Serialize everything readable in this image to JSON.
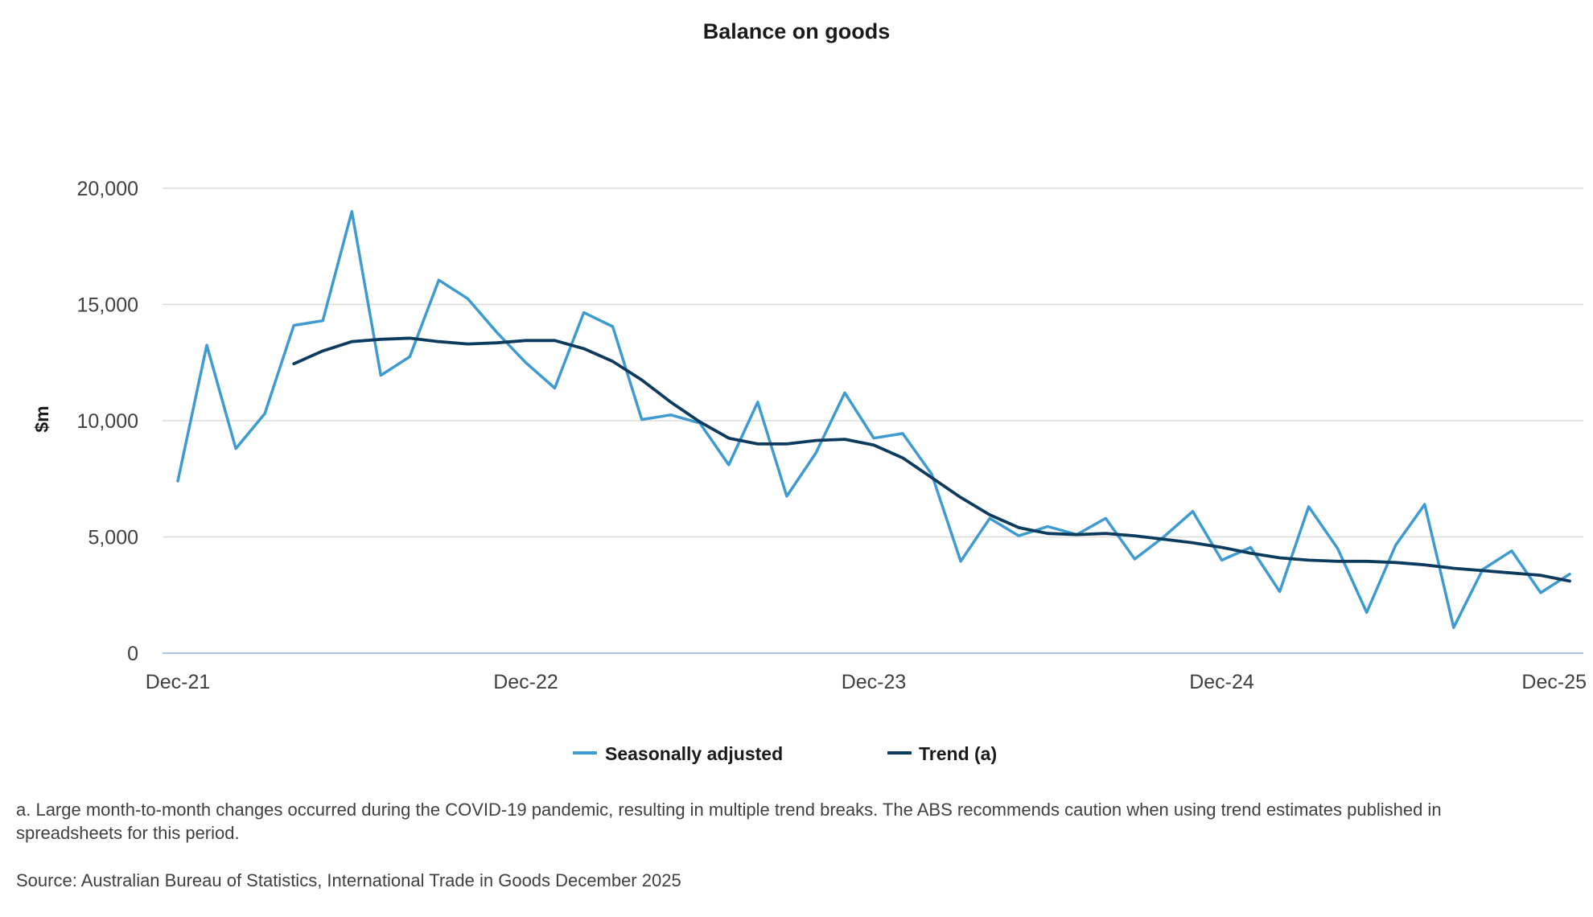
{
  "chart_data": {
    "type": "line",
    "title": "Balance on goods",
    "ylabel": "$m",
    "xlabel": "",
    "ylim": [
      0,
      20000
    ],
    "yticks": [
      0,
      5000,
      10000,
      15000,
      20000
    ],
    "ytick_labels": [
      "0",
      "5,000",
      "10,000",
      "15,000",
      "20,000"
    ],
    "x": [
      "Dec-21",
      "Jan-22",
      "Feb-22",
      "Mar-22",
      "Apr-22",
      "May-22",
      "Jun-22",
      "Jul-22",
      "Aug-22",
      "Sep-22",
      "Oct-22",
      "Nov-22",
      "Dec-22",
      "Jan-23",
      "Feb-23",
      "Mar-23",
      "Apr-23",
      "May-23",
      "Jun-23",
      "Jul-23",
      "Aug-23",
      "Sep-23",
      "Oct-23",
      "Nov-23",
      "Dec-23",
      "Jan-24",
      "Feb-24",
      "Mar-24",
      "Apr-24",
      "May-24",
      "Jun-24",
      "Jul-24",
      "Aug-24",
      "Sep-24",
      "Oct-24",
      "Nov-24",
      "Dec-24",
      "Jan-25",
      "Feb-25",
      "Mar-25",
      "Apr-25",
      "May-25",
      "Jun-25",
      "Jul-25",
      "Aug-25",
      "Sep-25",
      "Oct-25",
      "Nov-25",
      "Dec-25"
    ],
    "xtick_labels": [
      "Dec-21",
      "Dec-22",
      "Dec-23",
      "Dec-24",
      "Dec-25"
    ],
    "grid": true,
    "legend_position": "bottom-center",
    "series": [
      {
        "name": "Seasonally adjusted",
        "color": "#3d9bd1",
        "values": [
          7400,
          13250,
          8800,
          10300,
          14100,
          14300,
          19000,
          11950,
          12750,
          16050,
          15250,
          13800,
          12500,
          11400,
          14650,
          14050,
          10050,
          10250,
          9900,
          8100,
          10800,
          6750,
          8600,
          11200,
          9250,
          9450,
          7700,
          3950,
          5800,
          5050,
          5450,
          5100,
          5800,
          4050,
          5000,
          6100,
          4000,
          4550,
          2650,
          6300,
          4500,
          1750,
          4650,
          6400,
          1100,
          3600,
          4400,
          2600,
          3400
        ]
      },
      {
        "name": "Trend (a)",
        "color": "#0d3b5e",
        "values": [
          null,
          null,
          null,
          null,
          12450,
          13000,
          13400,
          13500,
          13550,
          13400,
          13300,
          13350,
          13450,
          13450,
          13100,
          12550,
          11750,
          10800,
          9950,
          9250,
          9000,
          9000,
          9150,
          9200,
          8950,
          8400,
          7550,
          6700,
          5950,
          5400,
          5150,
          5100,
          5150,
          5050,
          4900,
          4750,
          4550,
          4300,
          4100,
          4000,
          3950,
          3950,
          3900,
          3800,
          3650,
          3550,
          3450,
          3350,
          3100
        ]
      }
    ],
    "footnote": "a. Large month-to-month changes occurred during the COVID-19 pandemic, resulting in multiple trend breaks. The ABS recommends caution when using trend estimates published in spreadsheets for this period.",
    "source": "Source: Australian Bureau of Statistics, International Trade in Goods December 2025"
  }
}
